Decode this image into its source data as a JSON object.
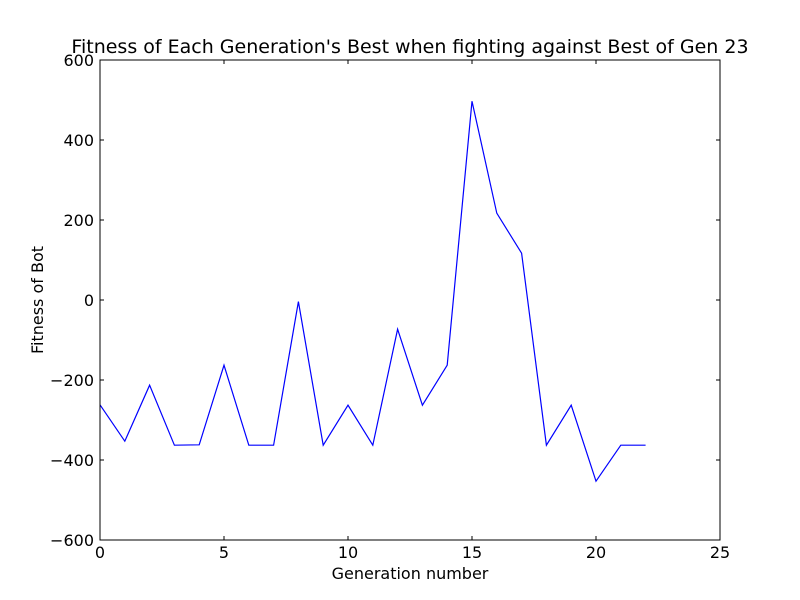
{
  "chart_data": {
    "type": "line",
    "title": "Fitness of Each Generation's Best when fighting against Best of Gen 23",
    "xlabel": "Generation number",
    "ylabel": "Fitness of Bot",
    "xlim": [
      0,
      25
    ],
    "ylim": [
      -600,
      600
    ],
    "xticks": [
      0,
      5,
      10,
      15,
      20,
      25
    ],
    "yticks": [
      -600,
      -400,
      -200,
      0,
      200,
      400,
      600
    ],
    "xtick_labels": [
      "0",
      "5",
      "10",
      "15",
      "20",
      "25"
    ],
    "ytick_labels": [
      "−600",
      "−400",
      "−200",
      "0",
      "200",
      "400",
      "600"
    ],
    "grid": false,
    "series": [
      {
        "color": "#0000ff",
        "x": [
          0,
          1,
          2,
          3,
          4,
          5,
          6,
          7,
          8,
          9,
          10,
          11,
          12,
          13,
          14,
          15,
          16,
          17,
          18,
          19,
          20,
          21,
          22
        ],
        "y": [
          -262,
          -353,
          -213,
          -363,
          -362,
          -163,
          -363,
          -363,
          -4,
          -363,
          -263,
          -363,
          -73,
          -263,
          -163,
          497,
          217,
          117,
          -363,
          -263,
          -453,
          -363,
          -363
        ]
      }
    ]
  }
}
